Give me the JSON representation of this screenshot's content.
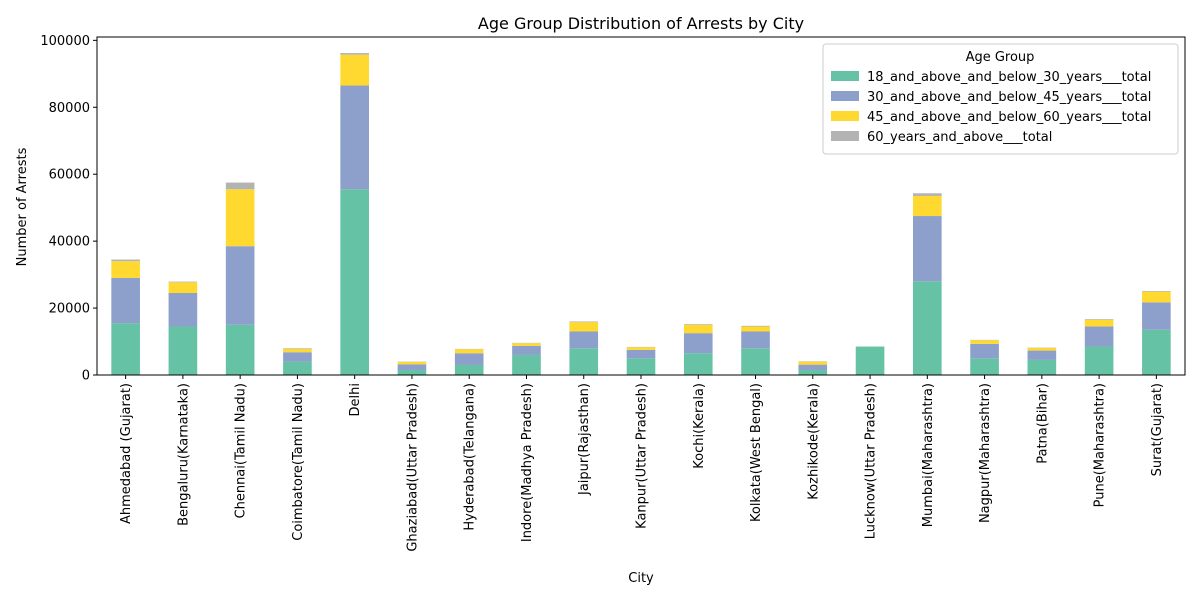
{
  "chart_data": {
    "type": "bar",
    "stacked": true,
    "title": "Age Group Distribution of Arrests by City",
    "xlabel": "City",
    "ylabel": "Number of Arrests",
    "ylim": [
      0,
      101000
    ],
    "yticks": [
      0,
      20000,
      40000,
      60000,
      80000,
      100000
    ],
    "legend_title": "Age Group",
    "legend_position": "top-right",
    "grid": false,
    "categories": [
      "Ahmedabad (Gujarat)",
      "Bengaluru(Karnataka)",
      "Chennai(Tamil Nadu)",
      "Coimbatore(Tamil Nadu)",
      "Delhi",
      "Ghaziabad(Uttar Pradesh)",
      "Hyderabad(Telangana)",
      "Indore(Madhya Pradesh)",
      "Jaipur(Rajasthan)",
      "Kanpur(Uttar Pradesh)",
      "Kochi(Kerala)",
      "Kolkata(West Bengal)",
      "Kozhikode(Kerala)",
      "Lucknow(Uttar Pradesh)",
      "Mumbai(Maharashtra)",
      "Nagpur(Maharashtra)",
      "Patna(Bihar)",
      "Pune(Maharashtra)",
      "Surat(Gujarat)"
    ],
    "series": [
      {
        "name": "18_and_above_and_below_30_years___total",
        "color": "#66c2a5",
        "values": [
          15500,
          14500,
          15000,
          4000,
          55500,
          1500,
          3000,
          6000,
          8000,
          5000,
          6500,
          8000,
          1500,
          8500,
          28000,
          5000,
          4500,
          8500,
          13500
        ]
      },
      {
        "name": "30_and_above_and_below_45_years___total",
        "color": "#8da0cb",
        "values": [
          13500,
          10000,
          23500,
          2800,
          31000,
          1700,
          3500,
          2700,
          5000,
          2500,
          6000,
          5000,
          1600,
          0,
          19500,
          4300,
          2800,
          6000,
          8200
        ]
      },
      {
        "name": "45_and_above_and_below_60_years___total",
        "color": "#ffd92f",
        "values": [
          5000,
          3200,
          17000,
          1000,
          9200,
          700,
          1200,
          800,
          2800,
          800,
          2500,
          1500,
          900,
          0,
          6000,
          1100,
          800,
          2000,
          3200
        ]
      },
      {
        "name": "60_years_and_above___total",
        "color": "#b3b3b3",
        "values": [
          500,
          200,
          2000,
          200,
          500,
          100,
          100,
          100,
          200,
          100,
          200,
          200,
          100,
          0,
          800,
          100,
          100,
          200,
          200
        ]
      }
    ]
  }
}
